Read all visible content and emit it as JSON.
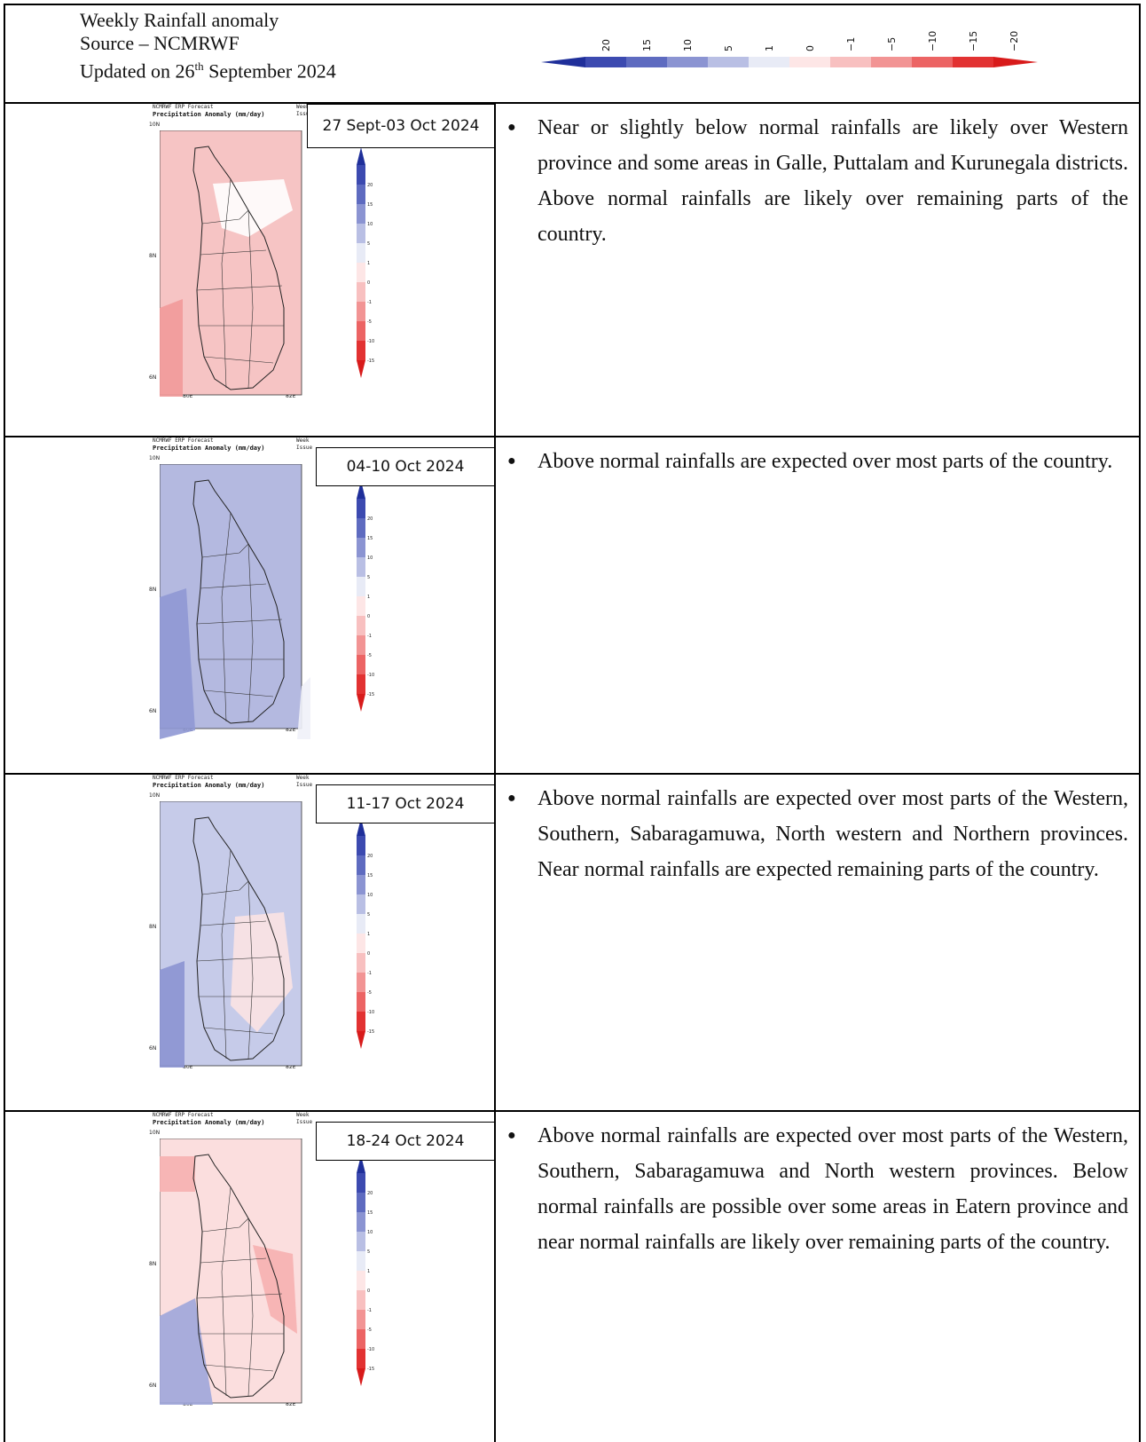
{
  "header": {
    "line1": "Weekly Rainfall anomaly",
    "line2": "Source – NCMRWF",
    "line3_prefix": "Updated on 26",
    "line3_sup": "th",
    "line3_suffix": " September 2024"
  },
  "legend": {
    "labels": [
      "20",
      "15",
      "10",
      "5",
      "1",
      "0",
      "−1",
      "−5",
      "−10",
      "−15",
      "−20"
    ],
    "vertical_labels": [
      "20",
      "15",
      "10",
      "5",
      "1",
      "0",
      "-1",
      "-5",
      "-10",
      "-15",
      "-20"
    ],
    "colors": [
      "#1f2f9a",
      "#3c4ab0",
      "#5e6bc0",
      "#8b94d2",
      "#b9bfe4",
      "#e8ebf6",
      "#fde6e6",
      "#f8c0c0",
      "#f29494",
      "#ec6464",
      "#e23232",
      "#d81b1b"
    ]
  },
  "map_labels": {
    "cap1": "NCMRWF ERP Forecast",
    "cap2": "Precipitation Anomaly (mm/day)",
    "cap3": "Week",
    "cap4": "Issue",
    "lat_top": "10N",
    "lat_mid": "8N",
    "lat_bot": "6N",
    "lon_left": "80E",
    "lon_right": "82E"
  },
  "rows": [
    {
      "date": "27 Sept-03 Oct 2024",
      "text": "Near or slightly below normal rainfalls are likely over Western province and some areas in Galle, Puttalam and Kurunegala districts. Above normal rainfalls are likely over remaining parts of the country."
    },
    {
      "date": "04-10 Oct 2024",
      "text": "Above normal rainfalls are expected over most parts of the country."
    },
    {
      "date": "11-17 Oct 2024",
      "text": "Above normal rainfalls are expected over most parts of the Western, Southern, Sabaragamuwa, North western and Northern provinces. Near normal rainfalls are expected remaining parts of the country."
    },
    {
      "date": "18-24 Oct 2024",
      "text": "Above normal rainfalls are expected over most parts of the Western, Southern, Sabaragamuwa and North western provinces. Below normal rainfalls are possible over some areas in Eatern province and near normal rainfalls are likely over remaining parts of the country."
    }
  ]
}
